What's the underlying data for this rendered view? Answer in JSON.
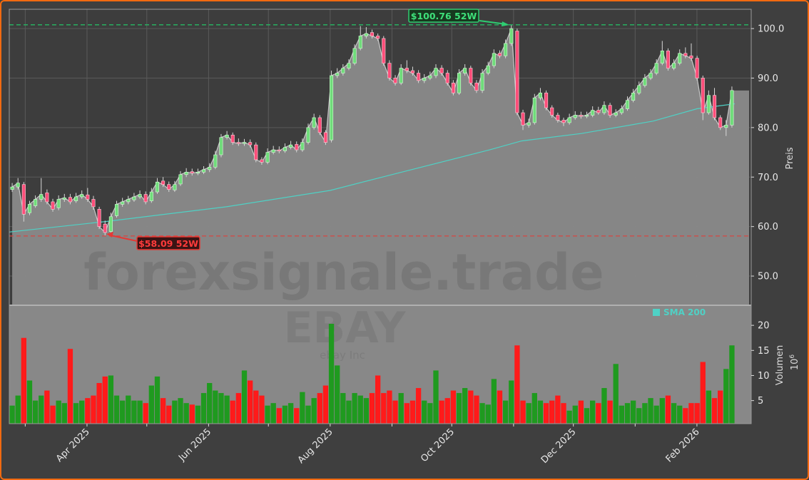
{
  "chart_data": {
    "type": "candlestick",
    "ticker_watermark": "EBAY",
    "company_watermark": "ebay Inc",
    "site_watermark": "forexsignale.trade",
    "start_date": "2025-02-21",
    "end_date": "2026-02-20",
    "price_axis": {
      "label": "Preis",
      "ylim": [
        44.1,
        103.9
      ],
      "ticks": [
        50.0,
        60.0,
        70.0,
        80.0,
        90.0,
        100.0
      ],
      "tick_labels": [
        "50.0",
        "60.0",
        "70.0",
        "80.0",
        "90.0",
        "100.0"
      ]
    },
    "volume_axis": {
      "label": "Volumen",
      "multiplier": "10",
      "multiplier_exp": "6",
      "ylim": [
        0.4,
        24
      ],
      "ticks": [
        5,
        10,
        15,
        20
      ],
      "tick_labels": [
        "5",
        "10",
        "15",
        "20"
      ]
    },
    "x_ticks": [
      {
        "date": "2025-03-01",
        "label": ""
      },
      {
        "date": "2025-04-01",
        "label": "Apr 2025"
      },
      {
        "date": "2025-05-01",
        "label": ""
      },
      {
        "date": "2025-06-01",
        "label": "Jun 2025"
      },
      {
        "date": "2025-07-01",
        "label": ""
      },
      {
        "date": "2025-08-01",
        "label": "Aug 2025"
      },
      {
        "date": "2025-09-01",
        "label": ""
      },
      {
        "date": "2025-10-01",
        "label": "Oct 2025"
      },
      {
        "date": "2025-11-01",
        "label": ""
      },
      {
        "date": "2025-12-01",
        "label": "Dec 2025"
      },
      {
        "date": "2026-01-01",
        "label": ""
      },
      {
        "date": "2026-02-01",
        "label": "Feb 2026"
      }
    ],
    "grid": true,
    "high_52w": {
      "value": 100.76,
      "label": "$100.76 52W",
      "color": "#2ecc71"
    },
    "low_52w": {
      "value": 58.09,
      "label": "$58.09 52W",
      "color": "#e53935"
    },
    "legend": {
      "position": "top-right of volume panel",
      "entries": [
        {
          "name": "SMA 200",
          "color": "#4fd1c5"
        }
      ]
    },
    "colors": {
      "up": "#6fdc7a",
      "down": "#ff4d79",
      "vol_up": "#1f9a1f",
      "vol_down": "#ff1a1a",
      "area": "#888888",
      "sma": "#4fd1c5"
    },
    "candles_ohlc": [
      [
        67.5,
        68.8,
        67,
        68
      ],
      [
        68,
        69.8,
        67.5,
        68.8
      ],
      [
        68.5,
        69,
        61,
        62.5
      ],
      [
        62.8,
        65.2,
        62.3,
        64.5
      ],
      [
        64.2,
        66.3,
        63.8,
        65.5
      ],
      [
        65.5,
        69.8,
        65,
        66.5
      ],
      [
        66.8,
        67.5,
        64.5,
        65
      ],
      [
        65,
        65.6,
        63,
        63.5
      ],
      [
        63.8,
        66.3,
        63.3,
        65.5
      ],
      [
        65.5,
        66.6,
        65,
        65.8
      ],
      [
        65.9,
        66.6,
        64.5,
        65
      ],
      [
        65.2,
        66.8,
        64.8,
        66
      ],
      [
        66,
        67.3,
        65.6,
        66.5
      ],
      [
        66.4,
        67.8,
        65,
        65.5
      ],
      [
        65.5,
        66.2,
        63.4,
        64
      ],
      [
        63.5,
        64,
        59.5,
        60
      ],
      [
        60.5,
        61.2,
        58.09,
        58.8
      ],
      [
        59,
        62.8,
        58.5,
        62
      ],
      [
        62.2,
        65.2,
        61.8,
        64.5
      ],
      [
        64.5,
        65.8,
        64,
        65
      ],
      [
        65,
        66.2,
        64.5,
        65.5
      ],
      [
        65.4,
        66.8,
        65,
        66
      ],
      [
        66,
        67.3,
        65.6,
        66.5
      ],
      [
        66.5,
        67.1,
        64.5,
        65
      ],
      [
        65.2,
        67.8,
        64.8,
        67
      ],
      [
        67,
        69.8,
        66.6,
        69
      ],
      [
        69.2,
        70,
        68,
        68.5
      ],
      [
        68.5,
        69.1,
        67,
        67.5
      ],
      [
        67.4,
        69.2,
        67,
        68.5
      ],
      [
        68.6,
        71.2,
        68.2,
        70.5
      ],
      [
        70.5,
        71.8,
        70,
        71
      ],
      [
        71.1,
        71.7,
        70.3,
        70.8
      ],
      [
        70.8,
        71.7,
        70.4,
        71
      ],
      [
        71,
        72.2,
        70.6,
        71.5
      ],
      [
        71.5,
        72.8,
        71,
        72
      ],
      [
        72,
        75.3,
        71.6,
        74.5
      ],
      [
        74.5,
        78.7,
        74,
        78
      ],
      [
        78,
        79.3,
        77.6,
        78.5
      ],
      [
        78.5,
        79,
        76.5,
        77
      ],
      [
        77,
        77.8,
        76.3,
        76.8
      ],
      [
        76.8,
        77.7,
        76.3,
        77
      ],
      [
        77,
        77.6,
        76,
        76.5
      ],
      [
        76.5,
        77,
        73,
        73.5
      ],
      [
        73.5,
        74,
        72.5,
        73
      ],
      [
        73,
        75.8,
        72.6,
        75
      ],
      [
        75,
        76.3,
        74.6,
        75.5
      ],
      [
        75.5,
        76.2,
        74.8,
        75.3
      ],
      [
        75.3,
        76.8,
        74.9,
        76
      ],
      [
        76,
        77.3,
        75.6,
        76.5
      ],
      [
        76.6,
        77.2,
        75,
        75.5
      ],
      [
        75.5,
        77.8,
        75.1,
        77
      ],
      [
        77,
        80.8,
        76.6,
        80
      ],
      [
        80,
        82.8,
        79.6,
        82
      ],
      [
        82,
        82.5,
        78.5,
        79
      ],
      [
        79,
        79.5,
        76.5,
        77
      ],
      [
        77.5,
        91.5,
        77,
        90.5
      ],
      [
        90.5,
        92,
        90,
        91
      ],
      [
        91,
        92.8,
        90.5,
        92
      ],
      [
        92,
        93.8,
        91.6,
        93
      ],
      [
        93,
        96.8,
        92.6,
        96
      ],
      [
        96,
        100.5,
        95.6,
        98.5
      ],
      [
        98.5,
        100.3,
        98,
        99
      ],
      [
        99.2,
        99.8,
        98,
        98.5
      ],
      [
        98.5,
        99,
        97.5,
        98
      ],
      [
        98,
        98.5,
        92.5,
        93
      ],
      [
        93,
        93.6,
        89.5,
        90
      ],
      [
        90,
        90.6,
        88.5,
        89
      ],
      [
        89,
        92.8,
        88.6,
        92
      ],
      [
        92,
        93.6,
        91,
        91.5
      ],
      [
        91.5,
        92.3,
        90.5,
        91
      ],
      [
        91,
        91.6,
        89,
        89.5
      ],
      [
        89.5,
        90.8,
        89,
        90
      ],
      [
        90,
        91.3,
        89.6,
        90.5
      ],
      [
        90.5,
        92.8,
        90,
        92
      ],
      [
        92,
        92.6,
        90.5,
        91
      ],
      [
        91,
        91.6,
        88.5,
        89
      ],
      [
        89,
        89.6,
        86.5,
        87
      ],
      [
        87,
        91.8,
        86.6,
        91
      ],
      [
        91,
        92.8,
        90.5,
        92
      ],
      [
        92,
        92.5,
        88.5,
        89
      ],
      [
        89,
        89.6,
        87,
        87.5
      ],
      [
        87.5,
        91.8,
        87,
        91
      ],
      [
        91,
        93.3,
        90.6,
        92.5
      ],
      [
        92.5,
        95.8,
        92,
        95
      ],
      [
        95,
        95.6,
        94,
        94.5
      ],
      [
        94.5,
        97.8,
        94,
        97
      ],
      [
        97,
        100.76,
        96.5,
        100
      ],
      [
        99.5,
        100,
        82.5,
        83
      ],
      [
        83,
        83.6,
        79.5,
        80.5
      ],
      [
        80.5,
        81.8,
        80,
        81
      ],
      [
        81,
        86.8,
        80.6,
        86
      ],
      [
        86,
        88,
        85.5,
        87
      ],
      [
        87,
        87.5,
        83.5,
        84
      ],
      [
        84,
        84.5,
        82,
        82.5
      ],
      [
        82.5,
        83,
        81,
        81.5
      ],
      [
        81.5,
        82,
        80.3,
        81
      ],
      [
        81,
        82.8,
        80.6,
        82
      ],
      [
        82,
        83.3,
        81.6,
        82.5
      ],
      [
        82.5,
        83.2,
        81.8,
        82.3
      ],
      [
        82.3,
        83.2,
        81.9,
        82.5
      ],
      [
        82.5,
        84.3,
        82.1,
        83.5
      ],
      [
        83.5,
        84.2,
        82.6,
        83
      ],
      [
        83,
        85.3,
        82.6,
        84.5
      ],
      [
        84.5,
        85,
        82,
        82.5
      ],
      [
        82.5,
        83.7,
        82.1,
        83
      ],
      [
        83,
        84.5,
        82.6,
        83.8
      ],
      [
        83.8,
        86.3,
        83.4,
        85.5
      ],
      [
        85.5,
        87.8,
        85.1,
        87
      ],
      [
        87,
        89.3,
        86.6,
        88.5
      ],
      [
        88.5,
        90.8,
        88.1,
        90
      ],
      [
        90,
        91.8,
        89.6,
        91
      ],
      [
        91,
        93.8,
        90.6,
        93
      ],
      [
        93,
        97.5,
        92.6,
        95.5
      ],
      [
        95.5,
        96,
        91.5,
        92
      ],
      [
        92,
        93.8,
        91.6,
        93
      ],
      [
        93,
        95.8,
        92.6,
        95
      ],
      [
        95,
        96.2,
        94,
        94.5
      ],
      [
        94.5,
        97,
        93.5,
        94
      ],
      [
        94,
        94.5,
        89.5,
        90
      ],
      [
        90,
        90.5,
        81.5,
        83
      ],
      [
        83,
        87.5,
        82.6,
        86.5
      ],
      [
        86.5,
        88,
        81.5,
        82
      ],
      [
        82,
        82.5,
        79.5,
        80
      ],
      [
        80,
        81.5,
        78.3,
        80.5
      ],
      [
        80.5,
        88.3,
        80,
        87.5
      ]
    ],
    "volume_millions": [
      4,
      6,
      17.5,
      9,
      5,
      6,
      7,
      4,
      5,
      4.5,
      15.3,
      4.5,
      5,
      5.5,
      6,
      8.5,
      9.8,
      10,
      6,
      5,
      6,
      5,
      5,
      4.5,
      8,
      9.8,
      5.5,
      4,
      5,
      5.5,
      4.5,
      4.2,
      4,
      6.5,
      8.5,
      7,
      6.5,
      6,
      5,
      6.5,
      11,
      9,
      7,
      6,
      4,
      4.5,
      3.5,
      4,
      4.5,
      3.5,
      6.7,
      4,
      5.5,
      6.5,
      8,
      20.3,
      12,
      6.5,
      5,
      6.5,
      6,
      5.5,
      6.5,
      10,
      6.5,
      7,
      5,
      6.5,
      4.5,
      5,
      7.5,
      5,
      4.5,
      11,
      5,
      5.5,
      7,
      6.5,
      7.5,
      7,
      6,
      4.5,
      4.2,
      9.3,
      7,
      5,
      9,
      16,
      5,
      4.5,
      6.5,
      5,
      4.5,
      5,
      6,
      4.5,
      3,
      4,
      5,
      3.5,
      5,
      4.5,
      7.5,
      5,
      12.3,
      4,
      4.5,
      5,
      3.5,
      4.5,
      5.5,
      4,
      5.5,
      6,
      4.5,
      4,
      3.5,
      4.5,
      4.5,
      12.7,
      7,
      5.5,
      7,
      11.3,
      16
    ],
    "sma200": [
      [
        "2025-02-21",
        58.9
      ],
      [
        "2025-04-10",
        61
      ],
      [
        "2025-06-10",
        64
      ],
      [
        "2025-08-01",
        67.3
      ],
      [
        "2025-09-01",
        70.5
      ],
      [
        "2025-10-20",
        75.5
      ],
      [
        "2025-11-05",
        77.3
      ],
      [
        "2025-12-05",
        78.8
      ],
      [
        "2026-01-10",
        81.3
      ],
      [
        "2026-02-01",
        83.8
      ],
      [
        "2026-02-20",
        84.8
      ]
    ]
  }
}
